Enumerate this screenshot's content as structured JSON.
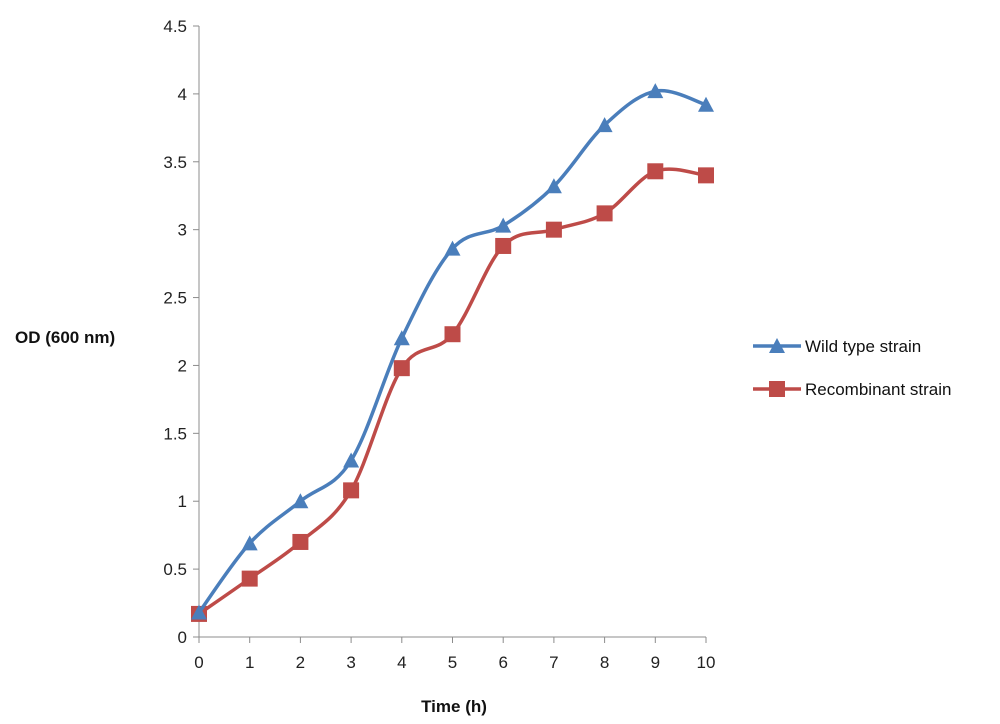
{
  "chart_data": {
    "type": "line",
    "title": "",
    "xlabel": "Time (h)",
    "ylabel": "OD (600 nm)",
    "x": [
      0,
      1,
      2,
      3,
      4,
      5,
      6,
      7,
      8,
      9,
      10
    ],
    "xticks": [
      "0",
      "1",
      "2",
      "3",
      "4",
      "5",
      "6",
      "7",
      "8",
      "9",
      "10"
    ],
    "yticks": [
      "0",
      "0.5",
      "1",
      "1.5",
      "2",
      "2.5",
      "3",
      "3.5",
      "4",
      "4.5"
    ],
    "xlim": [
      0,
      10
    ],
    "ylim": [
      0,
      4.5
    ],
    "grid": false,
    "legend_position": "right",
    "series": [
      {
        "name": "Wild type strain",
        "marker": "triangle",
        "color": "#4a7ebb",
        "values": [
          0.18,
          0.69,
          1.0,
          1.3,
          2.2,
          2.86,
          3.03,
          3.32,
          3.77,
          4.02,
          3.92
        ]
      },
      {
        "name": "Recombinant strain",
        "marker": "square",
        "color": "#be4b48",
        "values": [
          0.17,
          0.43,
          0.7,
          1.08,
          1.98,
          2.23,
          2.88,
          3.0,
          3.12,
          3.43,
          3.4
        ]
      }
    ]
  }
}
